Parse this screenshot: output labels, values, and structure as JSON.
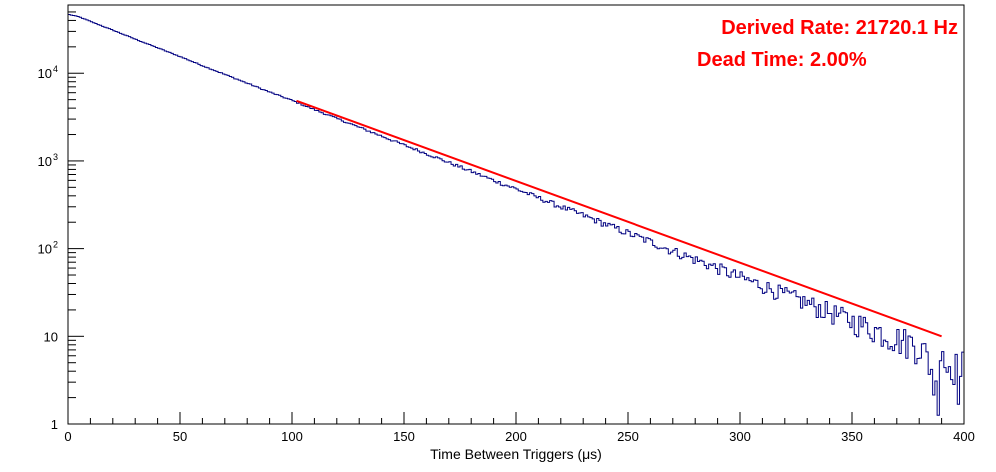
{
  "chart_data": {
    "type": "line",
    "xlabel": "Time Between Triggers (μs)",
    "ylabel": "",
    "xlim": [
      0,
      400
    ],
    "ylim": [
      1,
      60000
    ],
    "yscale": "log",
    "grid": false,
    "x_ticks": [
      "0",
      "50",
      "100",
      "150",
      "200",
      "250",
      "300",
      "350",
      "400"
    ],
    "y_ticks": [
      {
        "value": 1,
        "base": "1",
        "exp": ""
      },
      {
        "value": 10,
        "base": "10",
        "exp": ""
      },
      {
        "value": 100,
        "base": "10",
        "exp": "2"
      },
      {
        "value": 1000,
        "base": "10",
        "exp": "3"
      },
      {
        "value": 10000,
        "base": "10",
        "exp": "4"
      }
    ],
    "annotations": [
      {
        "text": "Derived Rate: 21720.1 Hz",
        "color": "#ff0000",
        "position": "top-right"
      },
      {
        "text": "Dead Time: 2.00%",
        "color": "#ff0000",
        "position": "top-right"
      }
    ],
    "series": [
      {
        "kind": "histogram",
        "color": "#000080",
        "bin_width": 1,
        "x": [
          0,
          5,
          10,
          20,
          30,
          40,
          50,
          60,
          70,
          80,
          90,
          100,
          110,
          120,
          130,
          140,
          150,
          160,
          170,
          180,
          190,
          200,
          210,
          220,
          230,
          240,
          250,
          260,
          270,
          280,
          290,
          300,
          310,
          320,
          330,
          340,
          350,
          360,
          370,
          380,
          385,
          388,
          390,
          392,
          395,
          398,
          400
        ],
        "values": [
          47000,
          44000,
          39000,
          31000,
          24500,
          19500,
          15500,
          12200,
          9700,
          7700,
          6100,
          4900,
          3850,
          3050,
          2420,
          1920,
          1520,
          1210,
          960,
          760,
          600,
          480,
          380,
          300,
          240,
          190,
          150,
          120,
          94,
          75,
          60,
          47,
          38,
          30,
          24,
          19,
          15,
          12,
          9.5,
          8,
          5,
          2,
          10,
          4,
          6,
          3,
          5
        ]
      },
      {
        "kind": "fit",
        "color": "#ff0000",
        "x_range": [
          102,
          390
        ],
        "y_range": [
          4850,
          10
        ]
      }
    ]
  }
}
